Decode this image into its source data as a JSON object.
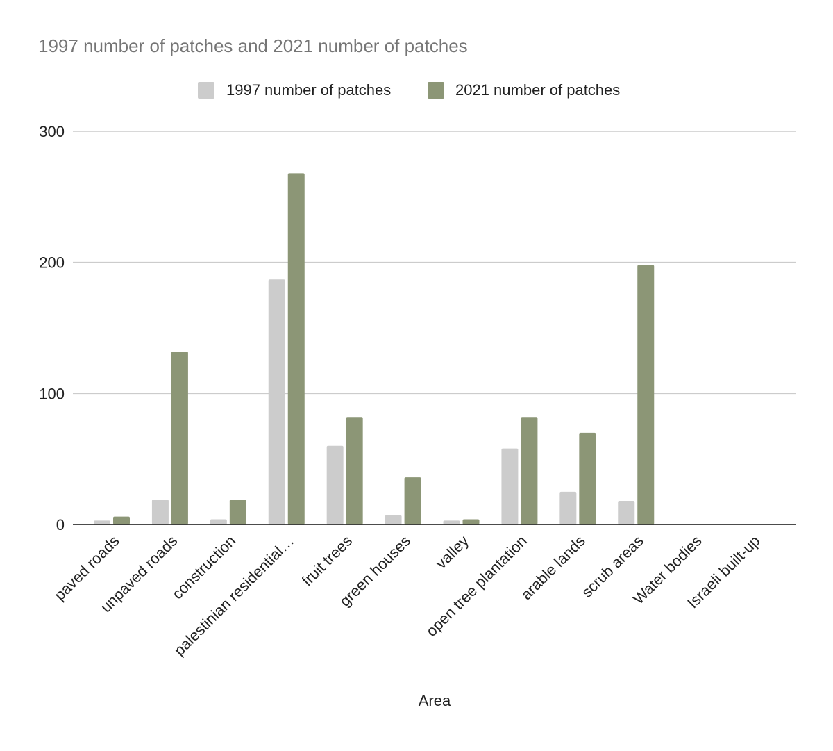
{
  "chart_data": {
    "type": "bar",
    "title": "1997 number of patches and 2021 number of patches",
    "xlabel": "Area",
    "ylabel": "",
    "ylim": [
      0,
      300
    ],
    "yticks": [
      0,
      100,
      200,
      300
    ],
    "grid": true,
    "legend_position": "top",
    "categories": [
      "paved roads",
      "unpaved roads",
      "construction",
      "palestinian residential…",
      "fruit trees",
      "green houses",
      "valley",
      "open tree plantation",
      "arable lands",
      "scrub areas",
      "Water bodies",
      "Israeli built-up"
    ],
    "series": [
      {
        "name": "1997 number of patches",
        "color": "#cccccc",
        "values": [
          3,
          19,
          4,
          187,
          60,
          7,
          3,
          58,
          25,
          18,
          0,
          0
        ]
      },
      {
        "name": "2021 number of patches",
        "color": "#8c9676",
        "values": [
          6,
          132,
          19,
          268,
          82,
          36,
          4,
          82,
          70,
          198,
          0,
          0
        ]
      }
    ]
  }
}
